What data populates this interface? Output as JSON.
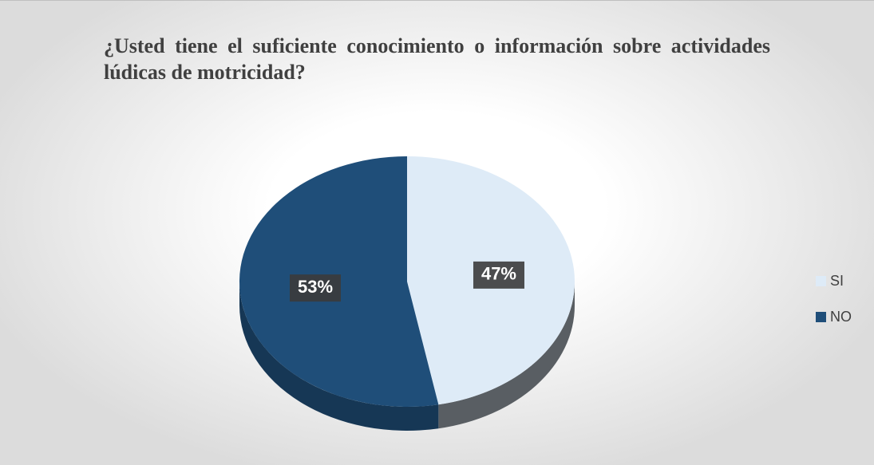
{
  "chart_data": {
    "type": "pie",
    "title": "¿Usted tiene el suficiente conocimiento o información sobre actividades lúdicas de motricidad?",
    "categories": [
      "SI",
      "NO"
    ],
    "values": [
      47,
      53
    ],
    "value_labels": [
      "47%",
      "53%"
    ],
    "colors": [
      "#deebf7",
      "#1f4e79"
    ],
    "legend": "right"
  }
}
